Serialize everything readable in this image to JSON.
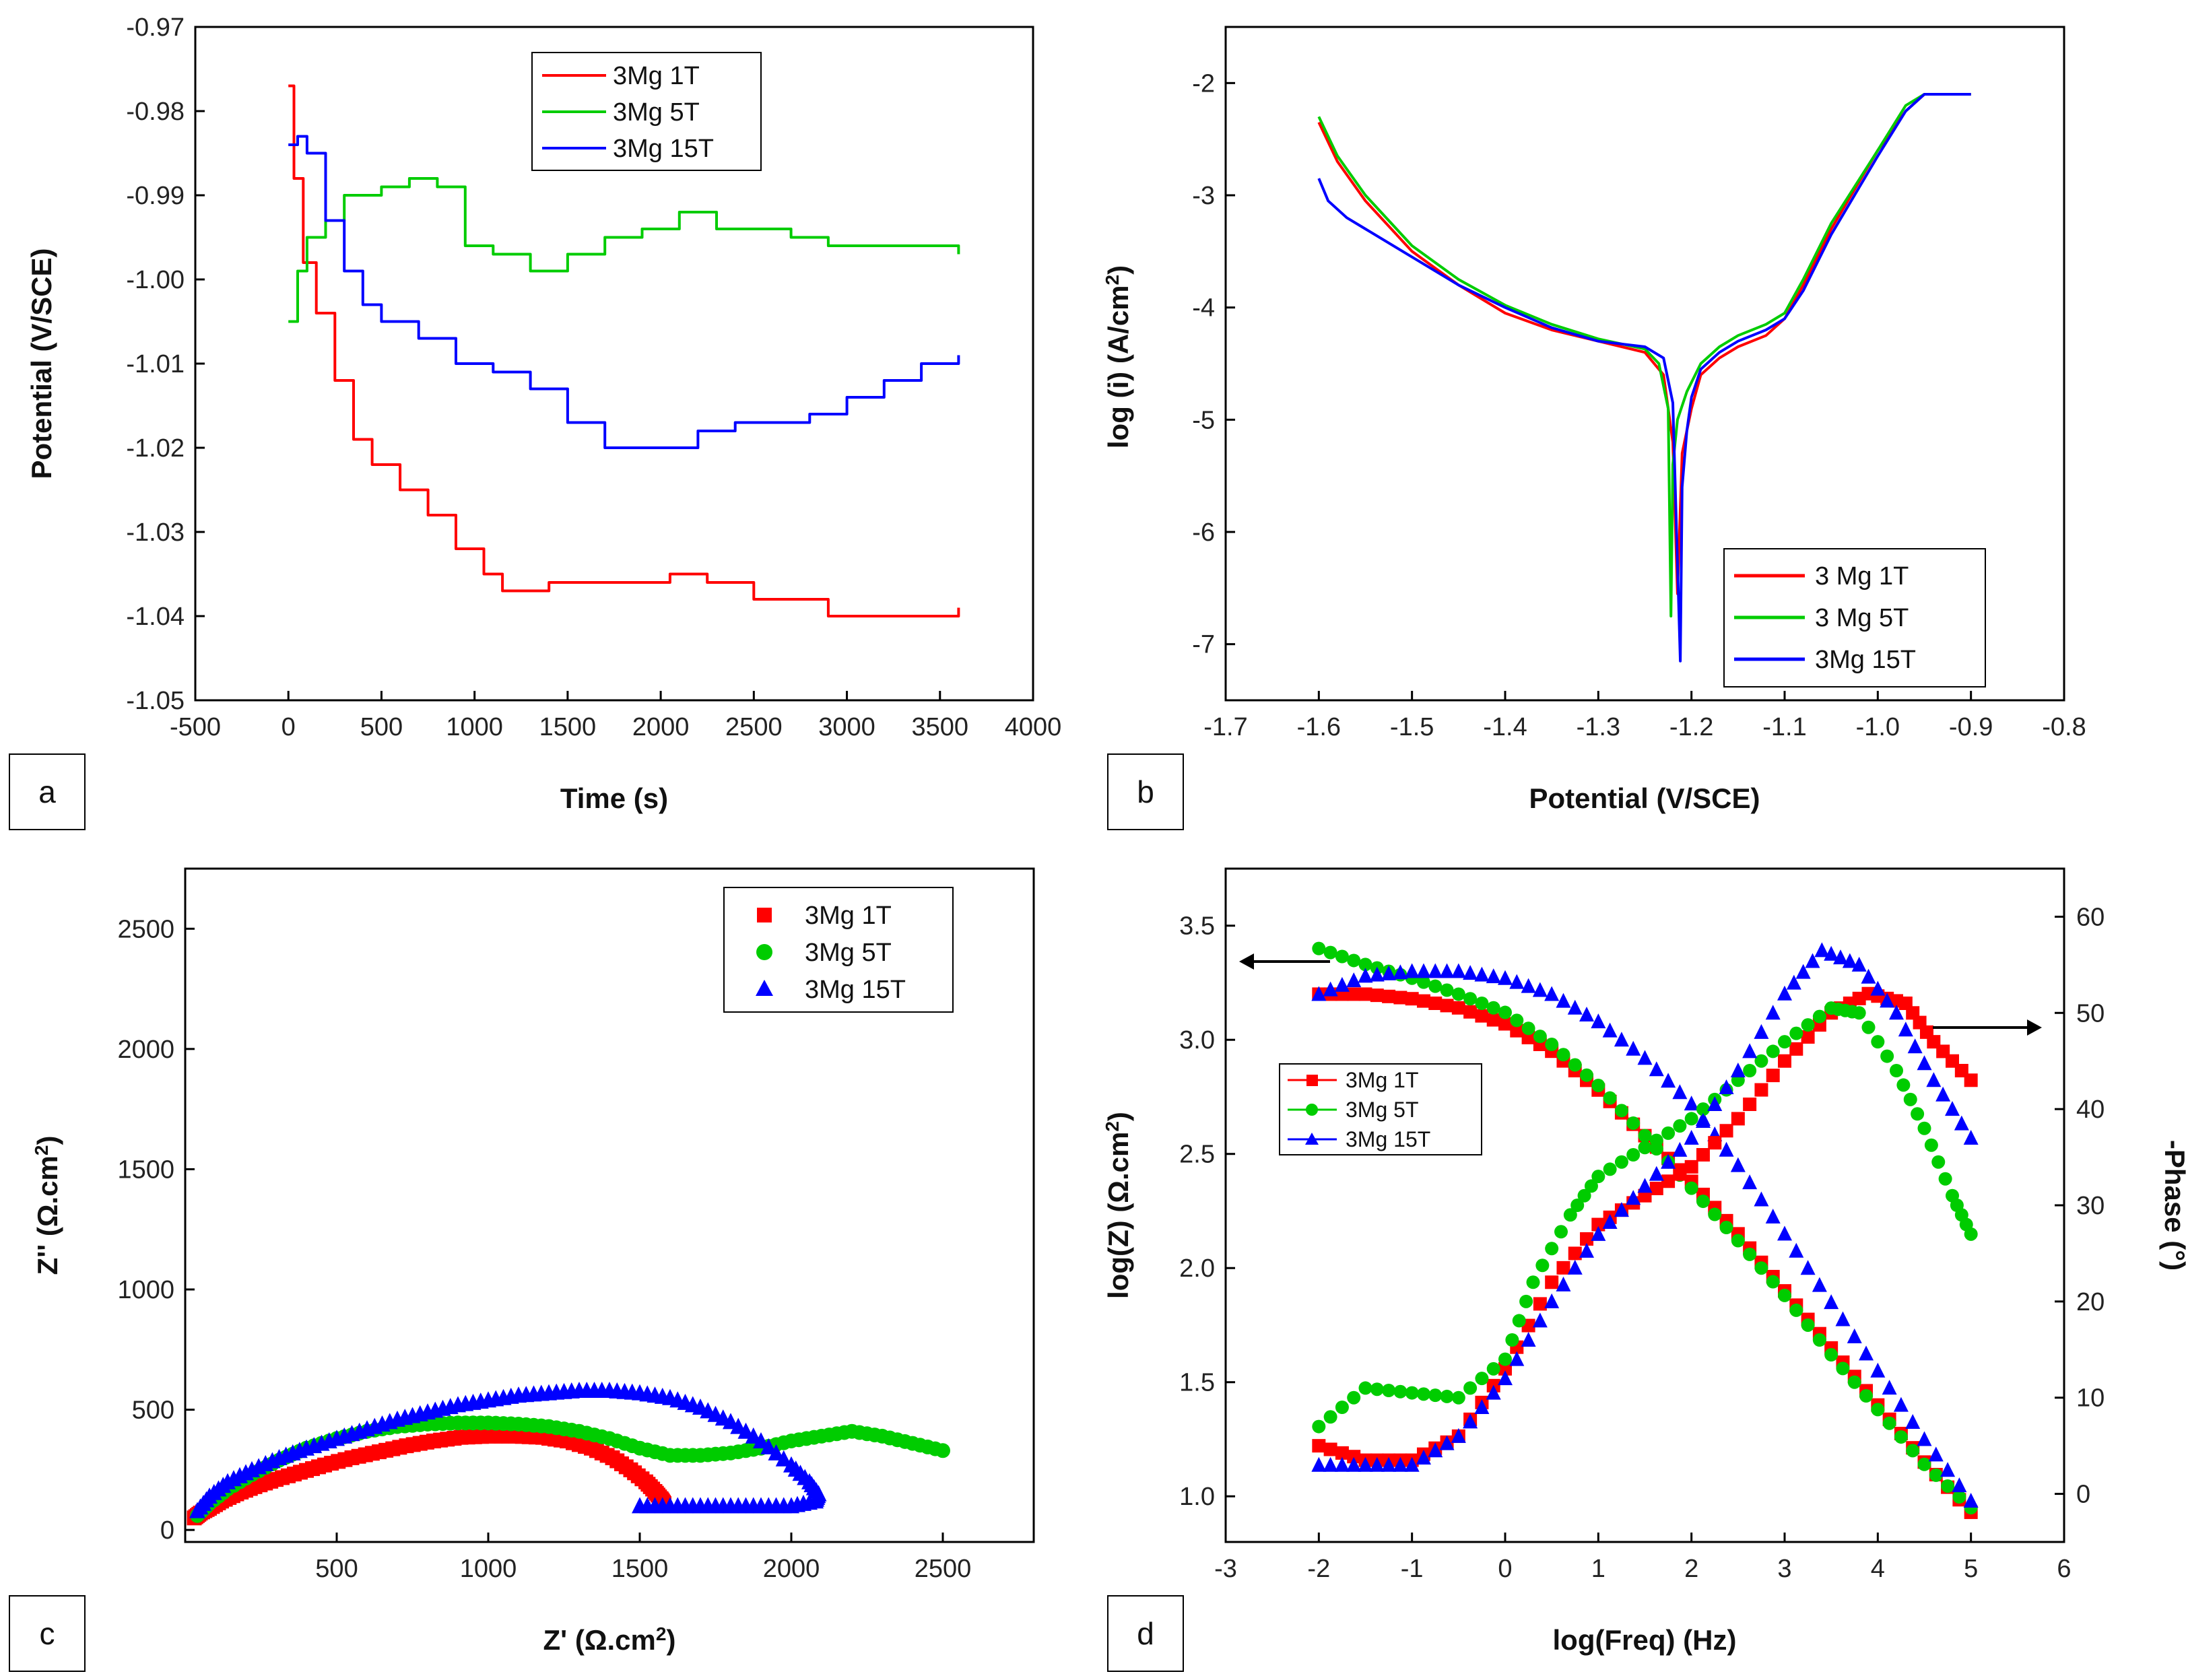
{
  "chart_data": [
    {
      "panel": "a",
      "type": "line",
      "title": "",
      "xlabel": "Time (s)",
      "ylabel": "Potential (V/SCE)",
      "xlim": [
        -500,
        4000
      ],
      "ylim": [
        -1.05,
        -0.97
      ],
      "xticks": [
        -500,
        0,
        500,
        1000,
        1500,
        2000,
        2500,
        3000,
        3500,
        4000
      ],
      "yticks": [
        -1.05,
        -1.04,
        -1.03,
        -1.02,
        -1.01,
        -1.0,
        -0.99,
        -0.98,
        -0.97
      ],
      "xtick_labels": [
        "-500",
        "0",
        "500",
        "1000",
        "1500",
        "2000",
        "2500",
        "3000",
        "3500",
        "4000"
      ],
      "ytick_labels": [
        "-1.05",
        "-1.04",
        "-1.03",
        "-1.02",
        "-1.01",
        "-1.00",
        "-0.99",
        "-0.98",
        "-0.97"
      ],
      "legend_position": "top-center",
      "series": [
        {
          "name": "3Mg 1T",
          "color": "#ff0000",
          "x": [
            0,
            30,
            80,
            150,
            250,
            350,
            450,
            600,
            750,
            900,
            1050,
            1150,
            1400,
            1800,
            2050,
            2150,
            2250,
            2500,
            2900,
            3300,
            3600
          ],
          "y": [
            -0.977,
            -0.988,
            -0.998,
            -1.004,
            -1.012,
            -1.019,
            -1.022,
            -1.025,
            -1.028,
            -1.032,
            -1.035,
            -1.037,
            -1.036,
            -1.036,
            -1.035,
            -1.035,
            -1.036,
            -1.038,
            -1.04,
            -1.04,
            -1.039
          ]
        },
        {
          "name": "3Mg 5T",
          "color": "#00cc00",
          "x": [
            0,
            50,
            100,
            200,
            300,
            400,
            500,
            650,
            800,
            900,
            950,
            1100,
            1300,
            1500,
            1700,
            1900,
            2100,
            2300,
            2500,
            2700,
            2900,
            3100,
            3300,
            3500,
            3600
          ],
          "y": [
            -1.005,
            -0.999,
            -0.995,
            -0.993,
            -0.99,
            -0.99,
            -0.989,
            -0.988,
            -0.989,
            -0.989,
            -0.996,
            -0.997,
            -0.999,
            -0.997,
            -0.995,
            -0.994,
            -0.992,
            -0.994,
            -0.994,
            -0.995,
            -0.996,
            -0.996,
            -0.996,
            -0.996,
            -0.997
          ]
        },
        {
          "name": "3Mg 15T",
          "color": "#0000ff",
          "x": [
            0,
            50,
            100,
            200,
            300,
            400,
            500,
            700,
            900,
            1100,
            1300,
            1500,
            1700,
            2000,
            2200,
            2400,
            2600,
            2800,
            3000,
            3200,
            3400,
            3600
          ],
          "y": [
            -0.984,
            -0.983,
            -0.985,
            -0.993,
            -0.999,
            -1.003,
            -1.005,
            -1.007,
            -1.01,
            -1.011,
            -1.013,
            -1.017,
            -1.02,
            -1.02,
            -1.018,
            -1.017,
            -1.017,
            -1.016,
            -1.014,
            -1.012,
            -1.01,
            -1.009
          ]
        }
      ]
    },
    {
      "panel": "b",
      "type": "line",
      "title": "",
      "xlabel": "Potential (V/SCE)",
      "ylabel": "log (i) (A/cm2)",
      "ylabel_main": "log (i) (A/cm",
      "ylabel_sup": "2",
      "ylabel_end": ")",
      "xlim": [
        -1.7,
        -0.8
      ],
      "ylim": [
        -7.5,
        -1.5
      ],
      "xticks": [
        -1.7,
        -1.6,
        -1.5,
        -1.4,
        -1.3,
        -1.2,
        -1.1,
        -1.0,
        -0.9,
        -0.8
      ],
      "yticks": [
        -7,
        -6,
        -5,
        -4,
        -3,
        -2
      ],
      "xtick_labels": [
        "-1.7",
        "-1.6",
        "-1.5",
        "-1.4",
        "-1.3",
        "-1.2",
        "-1.1",
        "-1.0",
        "-0.9",
        "-0.8"
      ],
      "ytick_labels": [
        "-7",
        "-6",
        "-5",
        "-4",
        "-3",
        "-2"
      ],
      "legend_position": "bottom-right",
      "series": [
        {
          "name": "3 Mg 1T",
          "color": "#ff0000",
          "x": [
            -1.6,
            -1.58,
            -1.55,
            -1.5,
            -1.45,
            -1.4,
            -1.35,
            -1.3,
            -1.25,
            -1.23,
            -1.22,
            -1.215,
            -1.21,
            -1.2,
            -1.19,
            -1.17,
            -1.15,
            -1.12,
            -1.1,
            -1.08,
            -1.05,
            -1.0,
            -0.97,
            -0.95,
            -0.9
          ],
          "y": [
            -2.35,
            -2.7,
            -3.05,
            -3.5,
            -3.8,
            -4.05,
            -4.2,
            -4.3,
            -4.4,
            -4.6,
            -5.2,
            -6.55,
            -5.3,
            -4.9,
            -4.6,
            -4.45,
            -4.35,
            -4.25,
            -4.1,
            -3.8,
            -3.3,
            -2.6,
            -2.25,
            -2.1,
            -2.1
          ]
        },
        {
          "name": "3 Mg 5T",
          "color": "#00cc00",
          "x": [
            -1.6,
            -1.58,
            -1.55,
            -1.5,
            -1.45,
            -1.4,
            -1.35,
            -1.3,
            -1.25,
            -1.235,
            -1.225,
            -1.222,
            -1.22,
            -1.215,
            -1.205,
            -1.19,
            -1.17,
            -1.15,
            -1.12,
            -1.1,
            -1.08,
            -1.05,
            -1.0,
            -0.97,
            -0.95,
            -0.9
          ],
          "y": [
            -2.3,
            -2.65,
            -3.0,
            -3.45,
            -3.75,
            -3.98,
            -4.15,
            -4.28,
            -4.37,
            -4.5,
            -4.9,
            -6.75,
            -5.4,
            -5.0,
            -4.75,
            -4.5,
            -4.35,
            -4.25,
            -4.15,
            -4.05,
            -3.75,
            -3.25,
            -2.6,
            -2.2,
            -2.1,
            -2.1
          ]
        },
        {
          "name": "3Mg 15T",
          "color": "#0000ff",
          "x": [
            -1.6,
            -1.59,
            -1.57,
            -1.55,
            -1.5,
            -1.45,
            -1.4,
            -1.35,
            -1.3,
            -1.25,
            -1.23,
            -1.22,
            -1.212,
            -1.21,
            -1.205,
            -1.2,
            -1.19,
            -1.17,
            -1.15,
            -1.12,
            -1.1,
            -1.08,
            -1.05,
            -1.0,
            -0.97,
            -0.95,
            -0.9
          ],
          "y": [
            -2.85,
            -3.05,
            -3.2,
            -3.3,
            -3.55,
            -3.8,
            -4.0,
            -4.18,
            -4.3,
            -4.35,
            -4.45,
            -4.85,
            -7.15,
            -5.6,
            -5.1,
            -4.8,
            -4.55,
            -4.4,
            -4.3,
            -4.2,
            -4.1,
            -3.85,
            -3.35,
            -2.65,
            -2.25,
            -2.1,
            -2.1
          ]
        }
      ]
    },
    {
      "panel": "c",
      "type": "scatter",
      "title": "",
      "xlabel": "Z' (Ω.cm2)",
      "xlabel_main": "Z' (Ω.cm",
      "xlabel_sup": "2",
      "xlabel_end": ")",
      "ylabel": "Z'' (Ω.cm2)",
      "ylabel_main": "Z'' (Ω.cm",
      "ylabel_sup": "2",
      "ylabel_end": ")",
      "xlim": [
        0,
        2800
      ],
      "ylim": [
        -50,
        2750
      ],
      "xticks": [
        500,
        1000,
        1500,
        2000,
        2500
      ],
      "yticks": [
        0,
        500,
        1000,
        1500,
        2000,
        2500
      ],
      "xtick_labels": [
        "500",
        "1000",
        "1500",
        "2000",
        "2500"
      ],
      "ytick_labels": [
        "0",
        "500",
        "1000",
        "1500",
        "2000",
        "2500"
      ],
      "legend_position": "top-right",
      "series": [
        {
          "name": "3Mg 1T",
          "color": "#ff0000",
          "marker": "square",
          "x": [
            30,
            50,
            80,
            120,
            170,
            230,
            300,
            380,
            460,
            550,
            640,
            730,
            820,
            910,
            1000,
            1090,
            1180,
            1260,
            1340,
            1410,
            1470,
            1520,
            1550,
            1570,
            1580
          ],
          "y": [
            50,
            70,
            90,
            120,
            150,
            180,
            210,
            240,
            270,
            300,
            325,
            350,
            370,
            385,
            390,
            390,
            385,
            370,
            340,
            300,
            250,
            200,
            160,
            130,
            110
          ]
        },
        {
          "name": "3Mg 5T",
          "color": "#00cc00",
          "marker": "circle",
          "x": [
            40,
            80,
            140,
            220,
            310,
            400,
            500,
            600,
            700,
            800,
            900,
            1000,
            1100,
            1200,
            1300,
            1400,
            1500,
            1600,
            1700,
            1800,
            1900,
            2000,
            2100,
            2200,
            2300,
            2400,
            2500
          ],
          "y": [
            60,
            110,
            170,
            230,
            290,
            340,
            380,
            410,
            430,
            440,
            445,
            445,
            440,
            430,
            410,
            380,
            340,
            310,
            310,
            320,
            340,
            370,
            390,
            410,
            390,
            360,
            330
          ]
        },
        {
          "name": "3Mg 15T",
          "color": "#0000ff",
          "marker": "triangle",
          "x": [
            40,
            80,
            140,
            220,
            310,
            400,
            500,
            600,
            700,
            800,
            900,
            1000,
            1100,
            1200,
            1300,
            1400,
            1500,
            1600,
            1700,
            1800,
            1900,
            2000,
            2060,
            2090,
            2080,
            2000,
            1900,
            1800,
            1700,
            1600,
            1500
          ],
          "y": [
            80,
            140,
            200,
            250,
            300,
            340,
            380,
            420,
            460,
            490,
            520,
            540,
            560,
            570,
            580,
            580,
            570,
            550,
            510,
            450,
            370,
            270,
            200,
            150,
            120,
            100,
            100,
            100,
            100,
            100,
            100
          ]
        }
      ]
    },
    {
      "panel": "d",
      "type": "scatter",
      "title": "",
      "xlabel": "log(Freq) (Hz)",
      "ylabel": "log(Z) (Ω.cm2)",
      "ylabel_main": "log(Z) (Ω.cm",
      "ylabel_sup": "2",
      "ylabel_end": ")",
      "y2label": "-Phase (°)",
      "xlim": [
        -3,
        6
      ],
      "ylim": [
        0.8,
        3.75
      ],
      "y2lim": [
        -5,
        65
      ],
      "xticks": [
        -3,
        -2,
        -1,
        0,
        1,
        2,
        3,
        4,
        5,
        6
      ],
      "yticks": [
        1.0,
        1.5,
        2.0,
        2.5,
        3.0,
        3.5
      ],
      "y2ticks": [
        0,
        10,
        20,
        30,
        40,
        50,
        60
      ],
      "xtick_labels": [
        "-3",
        "-2",
        "-1",
        "0",
        "1",
        "2",
        "3",
        "4",
        "5",
        "6"
      ],
      "ytick_labels": [
        "1.0",
        "1.5",
        "2.0",
        "2.5",
        "3.0",
        "3.5"
      ],
      "y2tick_labels": [
        "0",
        "10",
        "20",
        "30",
        "40",
        "50",
        "60"
      ],
      "legend_position": "center-left",
      "series": [
        {
          "name": "3Mg 1T",
          "color": "#ff0000",
          "marker": "square",
          "axis": "left",
          "x": [
            -2,
            -1.5,
            -1,
            -0.5,
            0,
            0.5,
            1,
            1.5,
            2,
            2.5,
            3,
            3.5,
            4,
            4.5,
            5
          ],
          "y": [
            3.2,
            3.2,
            3.18,
            3.14,
            3.07,
            2.95,
            2.78,
            2.58,
            2.38,
            2.15,
            1.9,
            1.65,
            1.4,
            1.15,
            0.93
          ]
        },
        {
          "name": "3Mg 5T",
          "color": "#00cc00",
          "marker": "circle",
          "axis": "left",
          "x": [
            -2,
            -1.5,
            -1,
            -0.5,
            0,
            0.5,
            1,
            1.5,
            2,
            2.5,
            3,
            3.5,
            4,
            4.5,
            5
          ],
          "y": [
            3.4,
            3.33,
            3.27,
            3.2,
            3.12,
            2.98,
            2.8,
            2.58,
            2.35,
            2.12,
            1.88,
            1.62,
            1.38,
            1.14,
            0.95
          ]
        },
        {
          "name": "3Mg 15T",
          "color": "#0000ff",
          "marker": "triangle",
          "axis": "left",
          "x": [
            -2,
            -1.5,
            -1,
            -0.5,
            0,
            0.5,
            1,
            1.5,
            2,
            2.5,
            3,
            3.5,
            4,
            4.5,
            5
          ],
          "y": [
            3.2,
            3.28,
            3.3,
            3.3,
            3.27,
            3.2,
            3.08,
            2.92,
            2.72,
            2.45,
            2.15,
            1.85,
            1.55,
            1.25,
            0.98
          ]
        },
        {
          "name": "3Mg 1T",
          "color": "#ff0000",
          "marker": "square",
          "axis": "right",
          "x": [
            -2,
            -1.5,
            -1,
            -0.5,
            0,
            0.5,
            1,
            1.5,
            2,
            2.5,
            3,
            3.5,
            3.9,
            4.3,
            4.6,
            5
          ],
          "y": [
            5,
            3.5,
            3.5,
            6,
            13,
            22,
            28,
            31,
            34,
            39,
            45,
            50,
            52,
            51,
            47,
            43
          ]
        },
        {
          "name": "3Mg 5T",
          "color": "#00cc00",
          "marker": "circle",
          "axis": "right",
          "x": [
            -2,
            -1.5,
            -1,
            -0.5,
            0,
            0.3,
            0.7,
            1,
            1.5,
            2,
            2.5,
            3,
            3.5,
            3.8,
            4.2,
            4.5,
            4.8,
            5
          ],
          "y": [
            7,
            11,
            10.5,
            10,
            14,
            22,
            29,
            33,
            36,
            39,
            43,
            47,
            50.5,
            50,
            44,
            38,
            31,
            27
          ]
        },
        {
          "name": "3Mg 15T",
          "color": "#0000ff",
          "marker": "triangle",
          "axis": "right",
          "x": [
            -2,
            -1.5,
            -1,
            -0.5,
            0,
            0.5,
            1,
            1.5,
            2,
            2.5,
            3,
            3.4,
            3.8,
            4.2,
            4.6,
            5
          ],
          "y": [
            3,
            3,
            3,
            6,
            12,
            20,
            27,
            32,
            37,
            44,
            52,
            56.5,
            55,
            50,
            43,
            37
          ]
        }
      ]
    }
  ],
  "panel_labels": [
    "a",
    "b",
    "c",
    "d"
  ]
}
